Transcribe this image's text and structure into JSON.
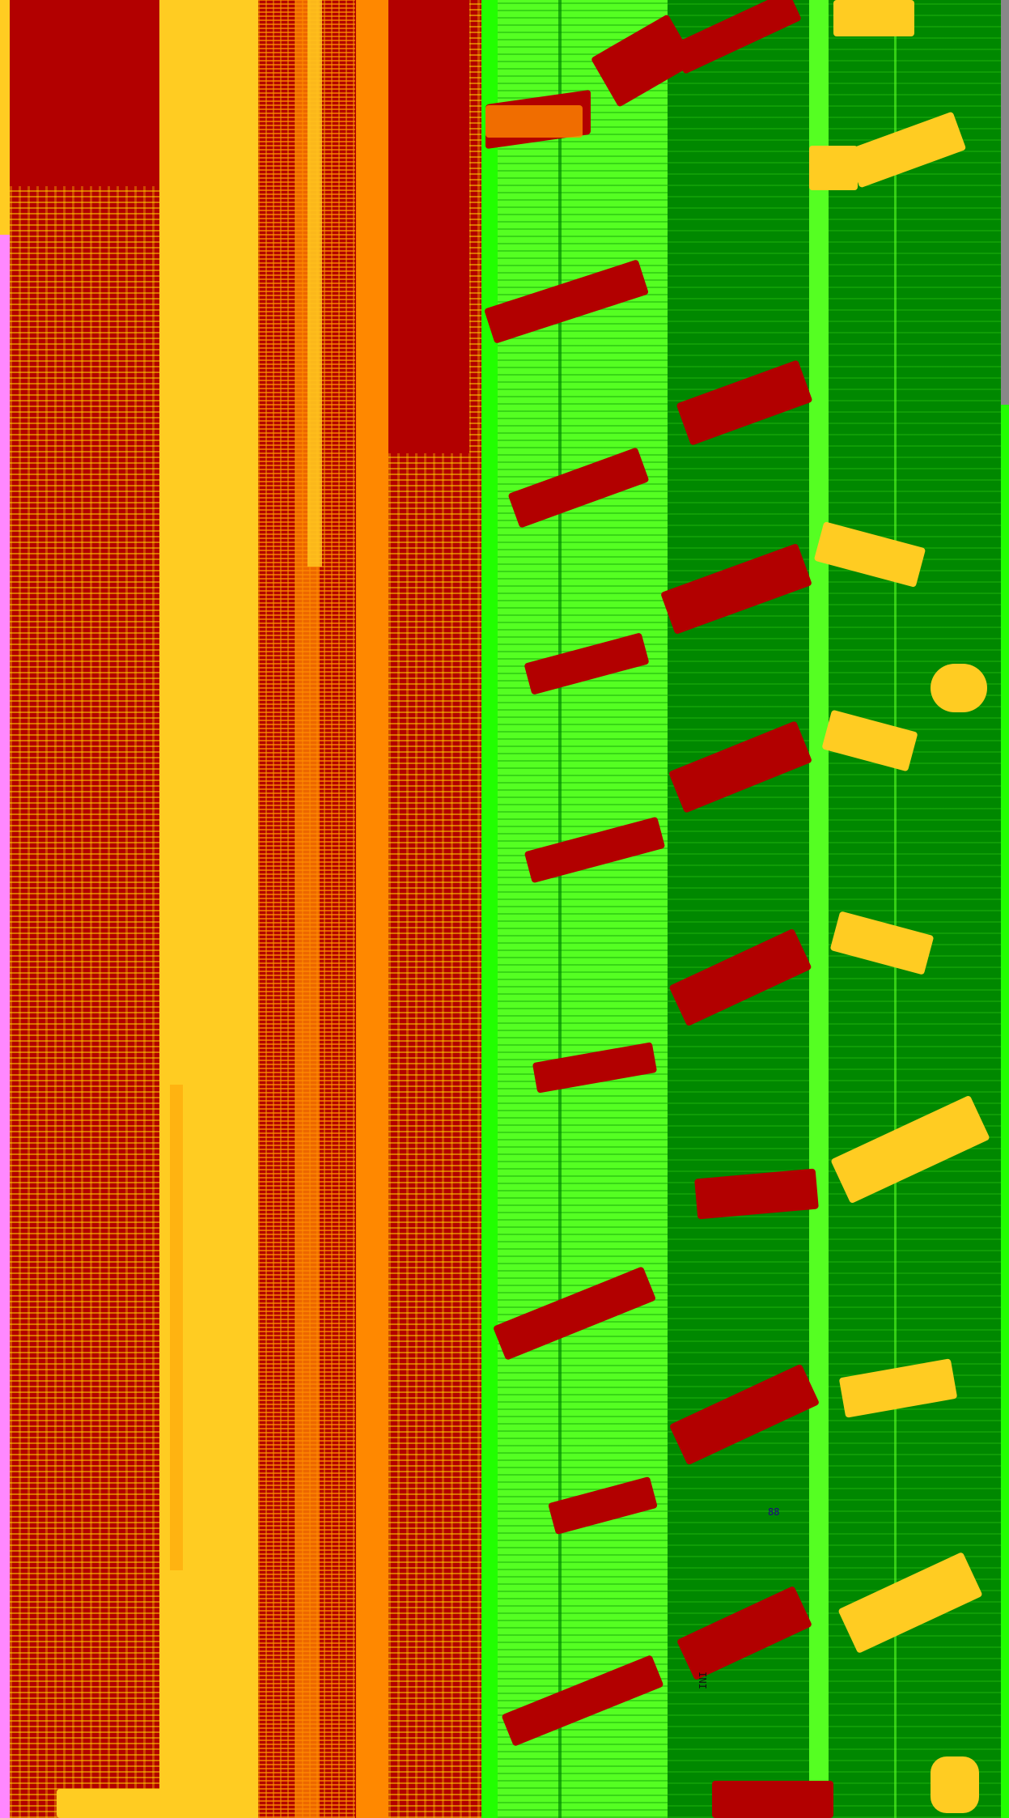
{
  "title": "",
  "palette": {
    "deep_red": "#b20000",
    "yellow": "#ffcc22",
    "orange": "#ff8800",
    "bright_green": "#55ff22",
    "neon_green": "#22ff00",
    "dark_green": "#008800",
    "pink": "#ff88ff"
  },
  "labels": {
    "label_a": "88",
    "label_b": "INI"
  }
}
